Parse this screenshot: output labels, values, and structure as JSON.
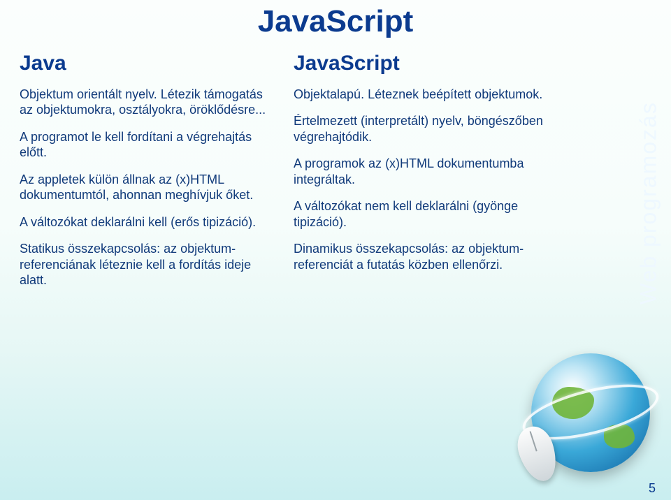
{
  "title": "JavaScript",
  "left": {
    "heading": "Java",
    "paragraphs": [
      "Objektum orientált nyelv. Létezik támogatás az objektumokra, osztályokra, öröklődésre...",
      "A programot le kell fordítani a végrehajtás előtt.",
      "Az appletek külön állnak az (x)HTML dokumentumtól, ahonnan meghívjuk őket.",
      "A változókat deklarálni kell (erős tipizáció).",
      "Statikus összekapcsolás: az objektum-referenciának léteznie kell a fordítás ideje alatt."
    ]
  },
  "right": {
    "heading": "JavaScript",
    "paragraphs": [
      "Objektalapú. Léteznek beépített objektumok.",
      "Értelmezett (interpretált) nyelv, böngészőben végrehajtódik.",
      "A programok az (x)HTML dokumentumba integráltak.",
      "A változókat nem kell deklarálni (gyönge tipizáció).",
      "Dinamikus összekapcsolás: az objektum-referenciát a futatás közben ellenőrzi."
    ]
  },
  "side_label": "Web programozás",
  "page_number": "5",
  "colors": {
    "title": "#0b3b8f",
    "body": "#103a7a",
    "bg_top": "#fbfefd",
    "bg_bottom": "#c9eef0"
  }
}
